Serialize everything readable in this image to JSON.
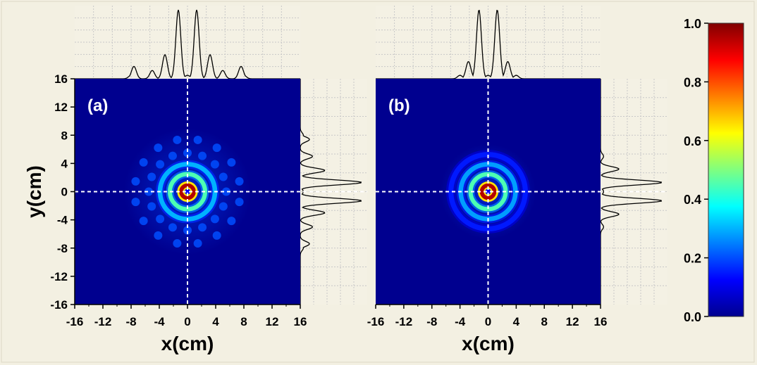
{
  "chart_data": [
    {
      "type": "heatmap",
      "panel_label": "(a)",
      "xlabel": "x(cm)",
      "ylabel": "y(cm)",
      "xlim": [
        -16,
        16
      ],
      "ylim": [
        -16,
        16
      ],
      "x_ticks": [
        "-16",
        "-12",
        "-8",
        "-4",
        "0",
        "4",
        "8",
        "12",
        "16"
      ],
      "y_ticks": [
        "16",
        "12",
        "8",
        "4",
        "0",
        "-4",
        "-8",
        "-12",
        "-16"
      ],
      "crosshair": {
        "x": 0,
        "y": 0
      },
      "pattern": {
        "rings": [
          {
            "r": 0.9,
            "w": 0.35,
            "a": 1.0
          },
          {
            "r": 2.5,
            "w": 0.5,
            "a": 0.45
          },
          {
            "r": 3.9,
            "w": 0.55,
            "a": 0.3
          },
          {
            "r": 5.5,
            "w": 0.8,
            "a": 0.2,
            "lobes": 8
          },
          {
            "r": 7.5,
            "w": 0.8,
            "a": 0.2,
            "lobes": 8
          }
        ]
      },
      "x_profile": {
        "x": [
          -8,
          -7.6,
          -5,
          -3.2,
          -1.3,
          0,
          1.3,
          3.2,
          5,
          7.6,
          8
        ],
        "values": [
          0.05,
          0.18,
          0.12,
          0.35,
          1.0,
          0.05,
          1.0,
          0.35,
          0.12,
          0.18,
          0.05
        ]
      },
      "y_profile": {
        "y": [
          8,
          7.4,
          5,
          3,
          1.3,
          0,
          -1.3,
          -3,
          -5,
          -7.4,
          -8
        ],
        "values": [
          0.05,
          0.15,
          0.2,
          0.4,
          1.0,
          0.05,
          1.0,
          0.4,
          0.2,
          0.15,
          0.05
        ]
      }
    },
    {
      "type": "heatmap",
      "panel_label": "(b)",
      "xlabel": "x(cm)",
      "ylabel": "",
      "xlim": [
        -16,
        16
      ],
      "ylim": [
        -16,
        16
      ],
      "x_ticks": [
        "-16",
        "-12",
        "-8",
        "-4",
        "0",
        "4",
        "8",
        "12",
        "16"
      ],
      "y_ticks": [],
      "crosshair": {
        "x": 0,
        "y": 0
      },
      "pattern": {
        "rings": [
          {
            "r": 0.9,
            "w": 0.35,
            "a": 1.0
          },
          {
            "r": 2.5,
            "w": 0.5,
            "a": 0.45
          },
          {
            "r": 3.9,
            "w": 0.55,
            "a": 0.28
          },
          {
            "r": 5.3,
            "w": 0.6,
            "a": 0.15
          }
        ]
      },
      "x_profile": {
        "x": [
          -4,
          -2.8,
          -1.3,
          0,
          1.3,
          2.8,
          4
        ],
        "values": [
          0.05,
          0.25,
          1.0,
          0.05,
          1.0,
          0.25,
          0.05
        ]
      },
      "y_profile": {
        "y": [
          5,
          3.2,
          1.3,
          0,
          -1.3,
          -3.2,
          -5
        ],
        "values": [
          0.05,
          0.3,
          1.0,
          0.05,
          1.0,
          0.3,
          0.05
        ]
      }
    }
  ],
  "colorbar": {
    "min": 0.0,
    "max": 1.0,
    "ticks": [
      "1.0",
      "0.8",
      "0.6",
      "0.4",
      "0.2",
      "0.0"
    ],
    "colormap": [
      "#00008f",
      "#0000ff",
      "#00ffff",
      "#ffff00",
      "#ff0000",
      "#800000"
    ]
  },
  "colors": {
    "background": "#f3f0e2",
    "heatmap_background": "#00008f",
    "crosshair": "#ffffff",
    "profile_line": "#000000"
  }
}
